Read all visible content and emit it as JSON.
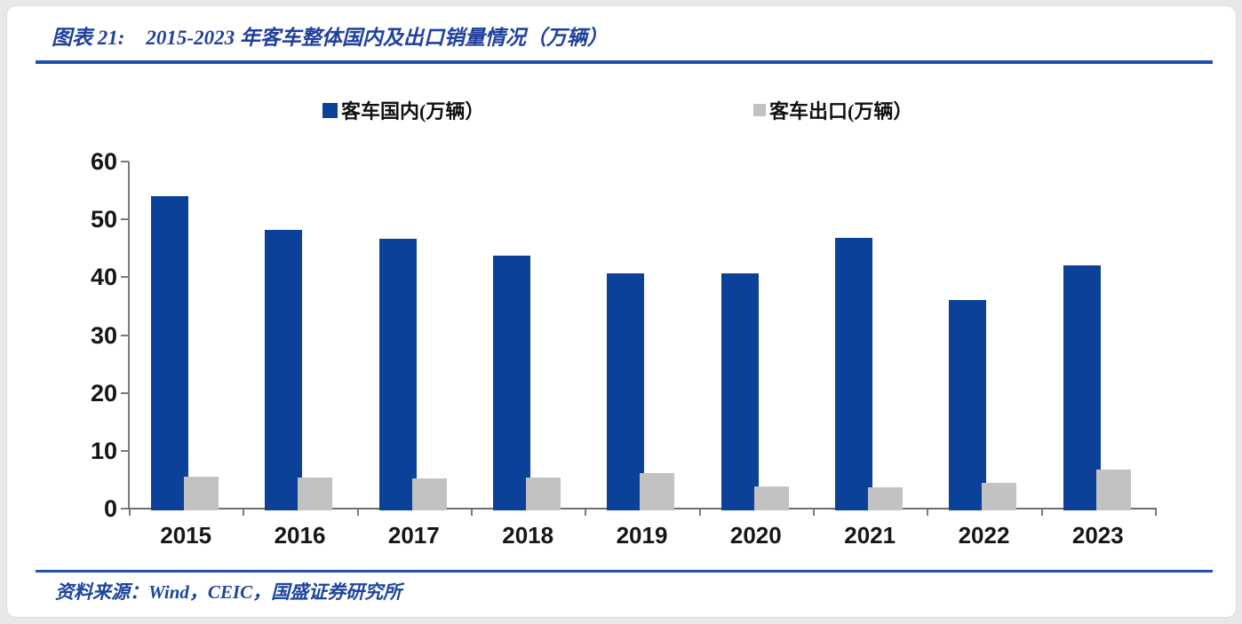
{
  "page": {
    "background_color": "#e8e8e8",
    "card_background_color": "#ffffff",
    "accent_rule_color": "#1e4fae"
  },
  "header": {
    "figure_label": "图表 21:",
    "title": "2015-2023 年客车整体国内及出口销量情况（万辆）",
    "title_color": "#20409e"
  },
  "footer": {
    "source_label": "资料来源：",
    "sources": "Wind，CEIC，国盛证券研究所",
    "text_color": "#1c459f"
  },
  "chart_data": {
    "type": "bar",
    "title": "2015-2023 年客车整体国内及出口销量情况（万辆）",
    "categories": [
      "2015",
      "2016",
      "2017",
      "2018",
      "2019",
      "2020",
      "2021",
      "2022",
      "2023"
    ],
    "series": [
      {
        "name": "客车国内(万辆）",
        "color": "#0b4199",
        "values": [
          54.4,
          48.5,
          46.9,
          44.0,
          41.0,
          41.0,
          47.1,
          36.4,
          42.3
        ]
      },
      {
        "name": "客车出口(万辆）",
        "color": "#c2c2c2",
        "values": [
          5.9,
          5.7,
          5.6,
          5.7,
          6.5,
          4.1,
          4.0,
          4.8,
          7.0
        ]
      }
    ],
    "xlabel": "",
    "ylabel": "",
    "ylim": [
      0,
      60
    ],
    "yticks": [
      0,
      10,
      20,
      30,
      40,
      50,
      60
    ],
    "grid": false,
    "legend_position": "top",
    "axis_color": "#7a7a7a",
    "tick_label_color": "#161616"
  }
}
